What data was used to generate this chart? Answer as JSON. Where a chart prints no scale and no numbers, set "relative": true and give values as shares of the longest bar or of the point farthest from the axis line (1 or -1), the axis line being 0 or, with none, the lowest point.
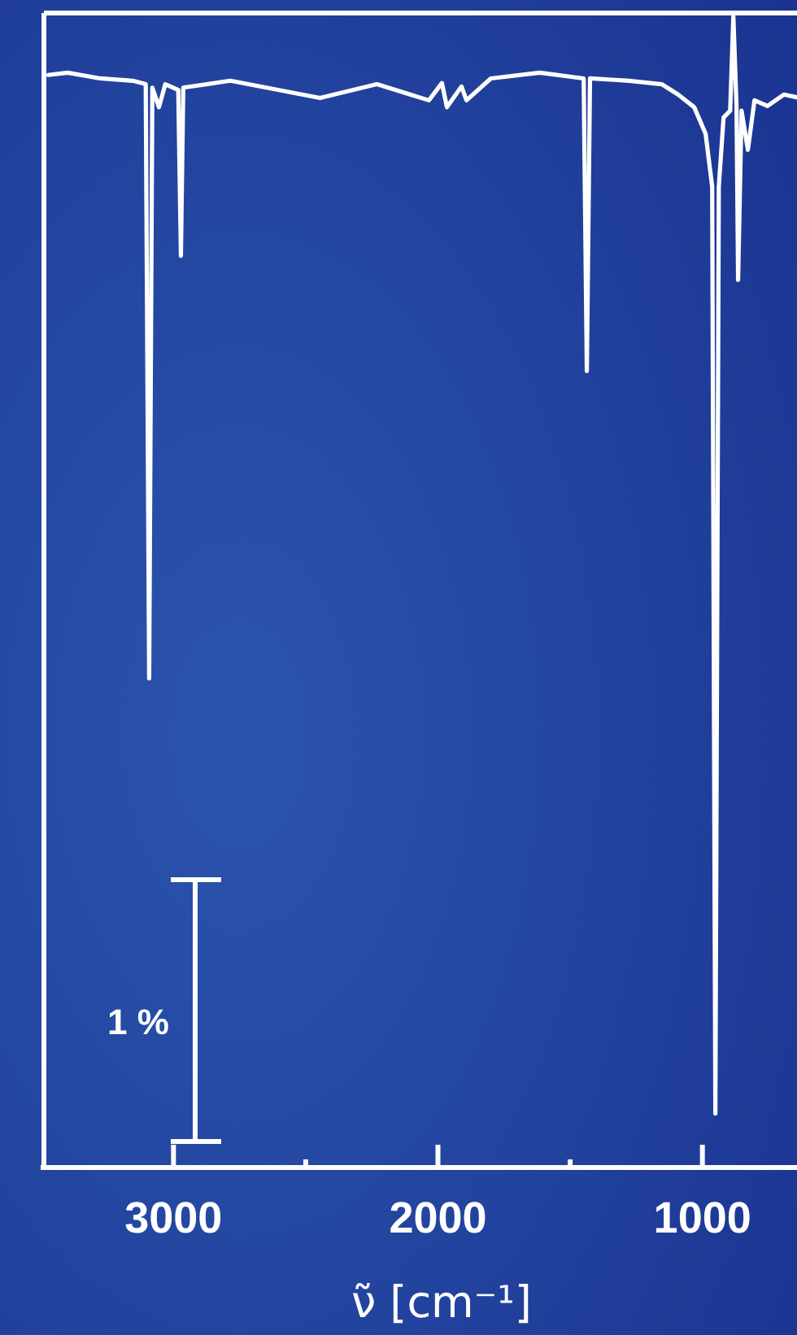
{
  "chart_data": {
    "type": "line",
    "xlabel": "ν̃ [cm⁻¹]",
    "relative": true,
    "xlim": [
      3490,
      630
    ],
    "xticks": [
      3000,
      {
        "value": 2500,
        "label": null
      },
      2000,
      {
        "value": 1500,
        "label": null
      },
      1000
    ],
    "x": [
      3474,
      3400,
      3277,
      3154,
      3105,
      3092,
      3080,
      3055,
      3031,
      2982,
      2972,
      2963,
      2785,
      2446,
      2231,
      2034,
      1985,
      1966,
      1911,
      1892,
      1800,
      1615,
      1449,
      1437,
      1425,
      1277,
      1154,
      1092,
      1031,
      988,
      963,
      951,
      938,
      920,
      895,
      883,
      871,
      865,
      852,
      828,
      803,
      754,
      692,
      631
    ],
    "series": [
      {
        "color": "#ffffff",
        "values": [
          0.949,
          0.951,
          0.946,
          0.944,
          0.941,
          0.425,
          0.938,
          0.921,
          0.941,
          0.936,
          0.792,
          0.938,
          0.944,
          0.929,
          0.941,
          0.927,
          0.942,
          0.921,
          0.939,
          0.927,
          0.946,
          0.951,
          0.946,
          0.692,
          0.946,
          0.944,
          0.941,
          0.932,
          0.921,
          0.898,
          0.852,
          0.047,
          0.852,
          0.912,
          0.918,
          1,
          0.922,
          0.771,
          0.918,
          0.884,
          0.927,
          0.922,
          0.932,
          0.929
        ]
      }
    ],
    "annotations": [
      "1 %"
    ],
    "marker": "none",
    "line_style": "solid"
  }
}
